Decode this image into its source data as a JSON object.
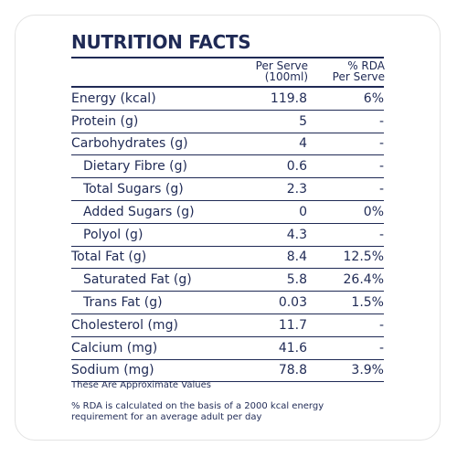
{
  "title": "NUTRITION FACTS",
  "header": {
    "per_serve_line1": "Per Serve",
    "per_serve_line2": "(100ml)",
    "rda_line1": "% RDA",
    "rda_line2": "Per Serve"
  },
  "rows": [
    {
      "name": "Energy (kcal)",
      "serve": "119.8",
      "rda": "6%"
    },
    {
      "name": "Protein (g)",
      "serve": "5",
      "rda": "-"
    },
    {
      "name": "Carbohydrates (g)",
      "serve": "4",
      "rda": "-"
    },
    {
      "name": "Dietary Fibre (g)",
      "serve": "0.6",
      "rda": "-"
    },
    {
      "name": "Total Sugars (g)",
      "serve": "2.3",
      "rda": "-"
    },
    {
      "name": "Added Sugars (g)",
      "serve": "0",
      "rda": "0%"
    },
    {
      "name": "Polyol (g)",
      "serve": "4.3",
      "rda": "-"
    },
    {
      "name": "Total Fat (g)",
      "serve": "8.4",
      "rda": "12.5%"
    },
    {
      "name": "Saturated Fat (g)",
      "serve": "5.8",
      "rda": "26.4%"
    },
    {
      "name": "Trans Fat (g)",
      "serve": "0.03",
      "rda": "1.5%"
    },
    {
      "name": "Cholesterol (mg)",
      "serve": "11.7",
      "rda": "-"
    },
    {
      "name": "Calcium (mg)",
      "serve": "41.6",
      "rda": "-"
    },
    {
      "name": "Sodium (mg)",
      "serve": "78.8",
      "rda": "3.9%"
    }
  ],
  "notes": {
    "approx": "These Are Approximate Values",
    "rda_line1": "% RDA is calculated on the basis of a 2000 kcal energy",
    "rda_line2": "requirement for an average adult per day"
  }
}
